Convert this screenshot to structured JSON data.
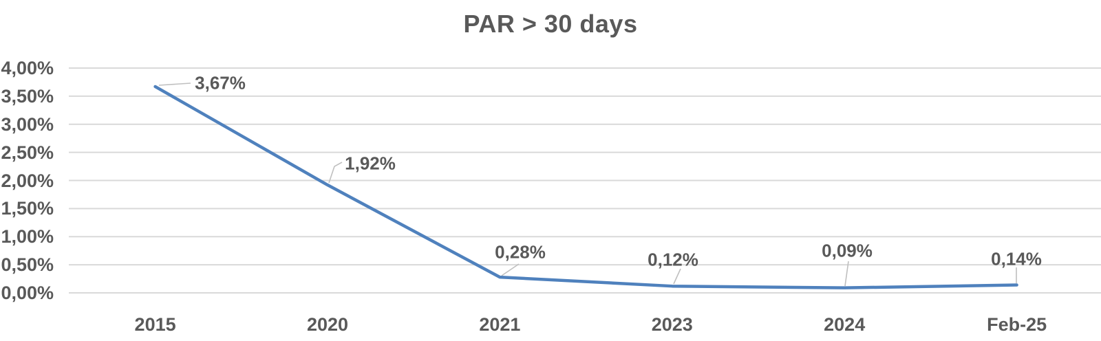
{
  "title": "PAR > 30 days",
  "chart_data": {
    "type": "line",
    "title": "PAR > 30 days",
    "categories": [
      "2015",
      "2020",
      "2021",
      "2023",
      "2024",
      "Feb-25"
    ],
    "values": [
      3.67,
      1.92,
      0.28,
      0.12,
      0.09,
      0.14
    ],
    "data_labels": [
      "3,67%",
      "1,92%",
      "0,28%",
      "0,12%",
      "0,09%",
      "0,14%"
    ],
    "y_tick_labels": [
      "0,00%",
      "0,50%",
      "1,00%",
      "1,50%",
      "2,00%",
      "2,50%",
      "3,00%",
      "3,50%",
      "4,00%"
    ],
    "ylim": [
      0,
      4
    ],
    "y_tick_step": 0.5,
    "xlabel": "",
    "ylabel": "",
    "grid": true,
    "legend": "none",
    "colors": {
      "series": "#4F81BD",
      "text": "#595959",
      "gridline": "#D9D9D9",
      "leader": "#BFBFBF",
      "background": "#FFFFFF"
    }
  }
}
